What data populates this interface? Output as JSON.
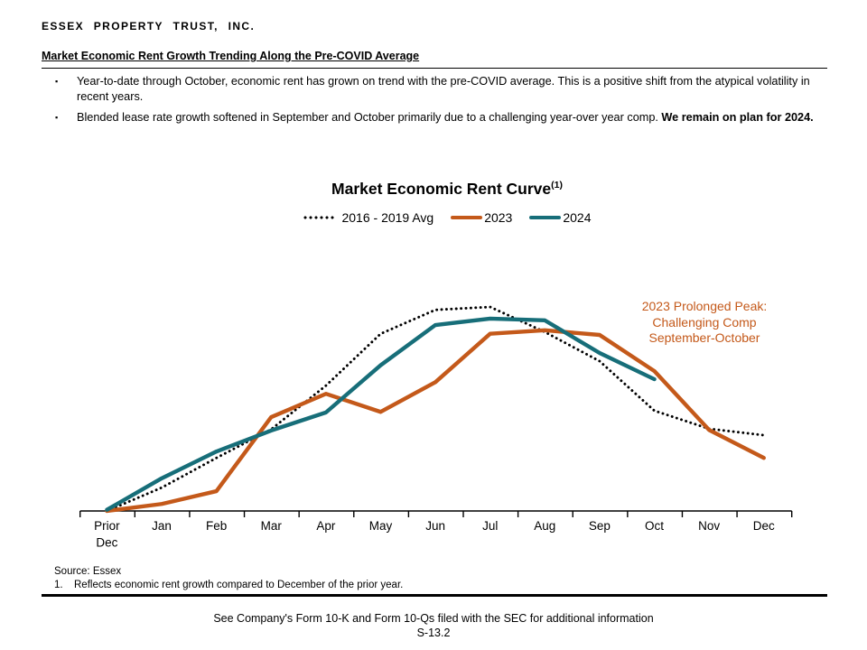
{
  "header": {
    "company": "ESSEX PROPERTY TRUST, INC.",
    "slide_title": "Market Economic Rent Growth Trending Along the Pre-COVID Average"
  },
  "bullets": [
    {
      "text": "Year-to-date through October, economic rent has grown on trend with the pre-COVID average. This is a positive shift from the atypical volatility in recent years.",
      "bold": ""
    },
    {
      "text": "Blended lease rate growth softened in September and October primarily due to a challenging year-over year comp. ",
      "bold": "We remain on plan for 2024."
    }
  ],
  "chart": {
    "title": "Market Economic Rent Curve",
    "title_superscript": "(1)",
    "legend": [
      {
        "label": "2016 - 2019 Avg",
        "style": "dotted",
        "color": "#000000"
      },
      {
        "label": "2023",
        "style": "solid",
        "color": "#C4591A"
      },
      {
        "label": "2024",
        "style": "solid",
        "color": "#176E79"
      }
    ],
    "annotation": {
      "lines": [
        "2023 Prolonged Peak:",
        "Challenging Comp",
        "September-October"
      ],
      "color": "#C4591A"
    }
  },
  "chart_data": {
    "type": "line",
    "title": "Market Economic Rent Curve(1)",
    "xlabel": "",
    "ylabel": "",
    "categories": [
      "Prior Dec",
      "Jan",
      "Feb",
      "Mar",
      "Apr",
      "May",
      "Jun",
      "Jul",
      "Aug",
      "Sep",
      "Oct",
      "Nov",
      "Dec"
    ],
    "series": [
      {
        "name": "2016 - 2019 Avg",
        "style": "dotted",
        "color": "#000000",
        "values": [
          0,
          0.4,
          0.91,
          1.4,
          2.15,
          3.04,
          3.45,
          3.5,
          3.07,
          2.57,
          1.72,
          1.41,
          1.3
        ]
      },
      {
        "name": "2023",
        "style": "solid",
        "color": "#C4591A",
        "values": [
          0,
          0.12,
          0.34,
          1.61,
          2.01,
          1.7,
          2.21,
          3.04,
          3.1,
          3.02,
          2.4,
          1.39,
          0.91
        ]
      },
      {
        "name": "2024",
        "style": "solid",
        "color": "#176E79",
        "values": [
          0.02,
          0.56,
          1.02,
          1.38,
          1.69,
          2.5,
          3.19,
          3.3,
          3.27,
          2.71,
          2.26,
          null,
          null
        ]
      }
    ],
    "ylim": [
      0,
      4
    ],
    "y_axis_visible": false,
    "grid": false,
    "legend_position": "top"
  },
  "footnotes": {
    "source": "Source: Essex",
    "items": [
      {
        "num": "1.",
        "text": "Reflects economic rent growth compared to December of the prior year."
      }
    ]
  },
  "footer": {
    "disclaimer": "See Company's Form 10-K and Form 10-Qs filed with the SEC for additional information",
    "page_number": "S-13.2"
  }
}
